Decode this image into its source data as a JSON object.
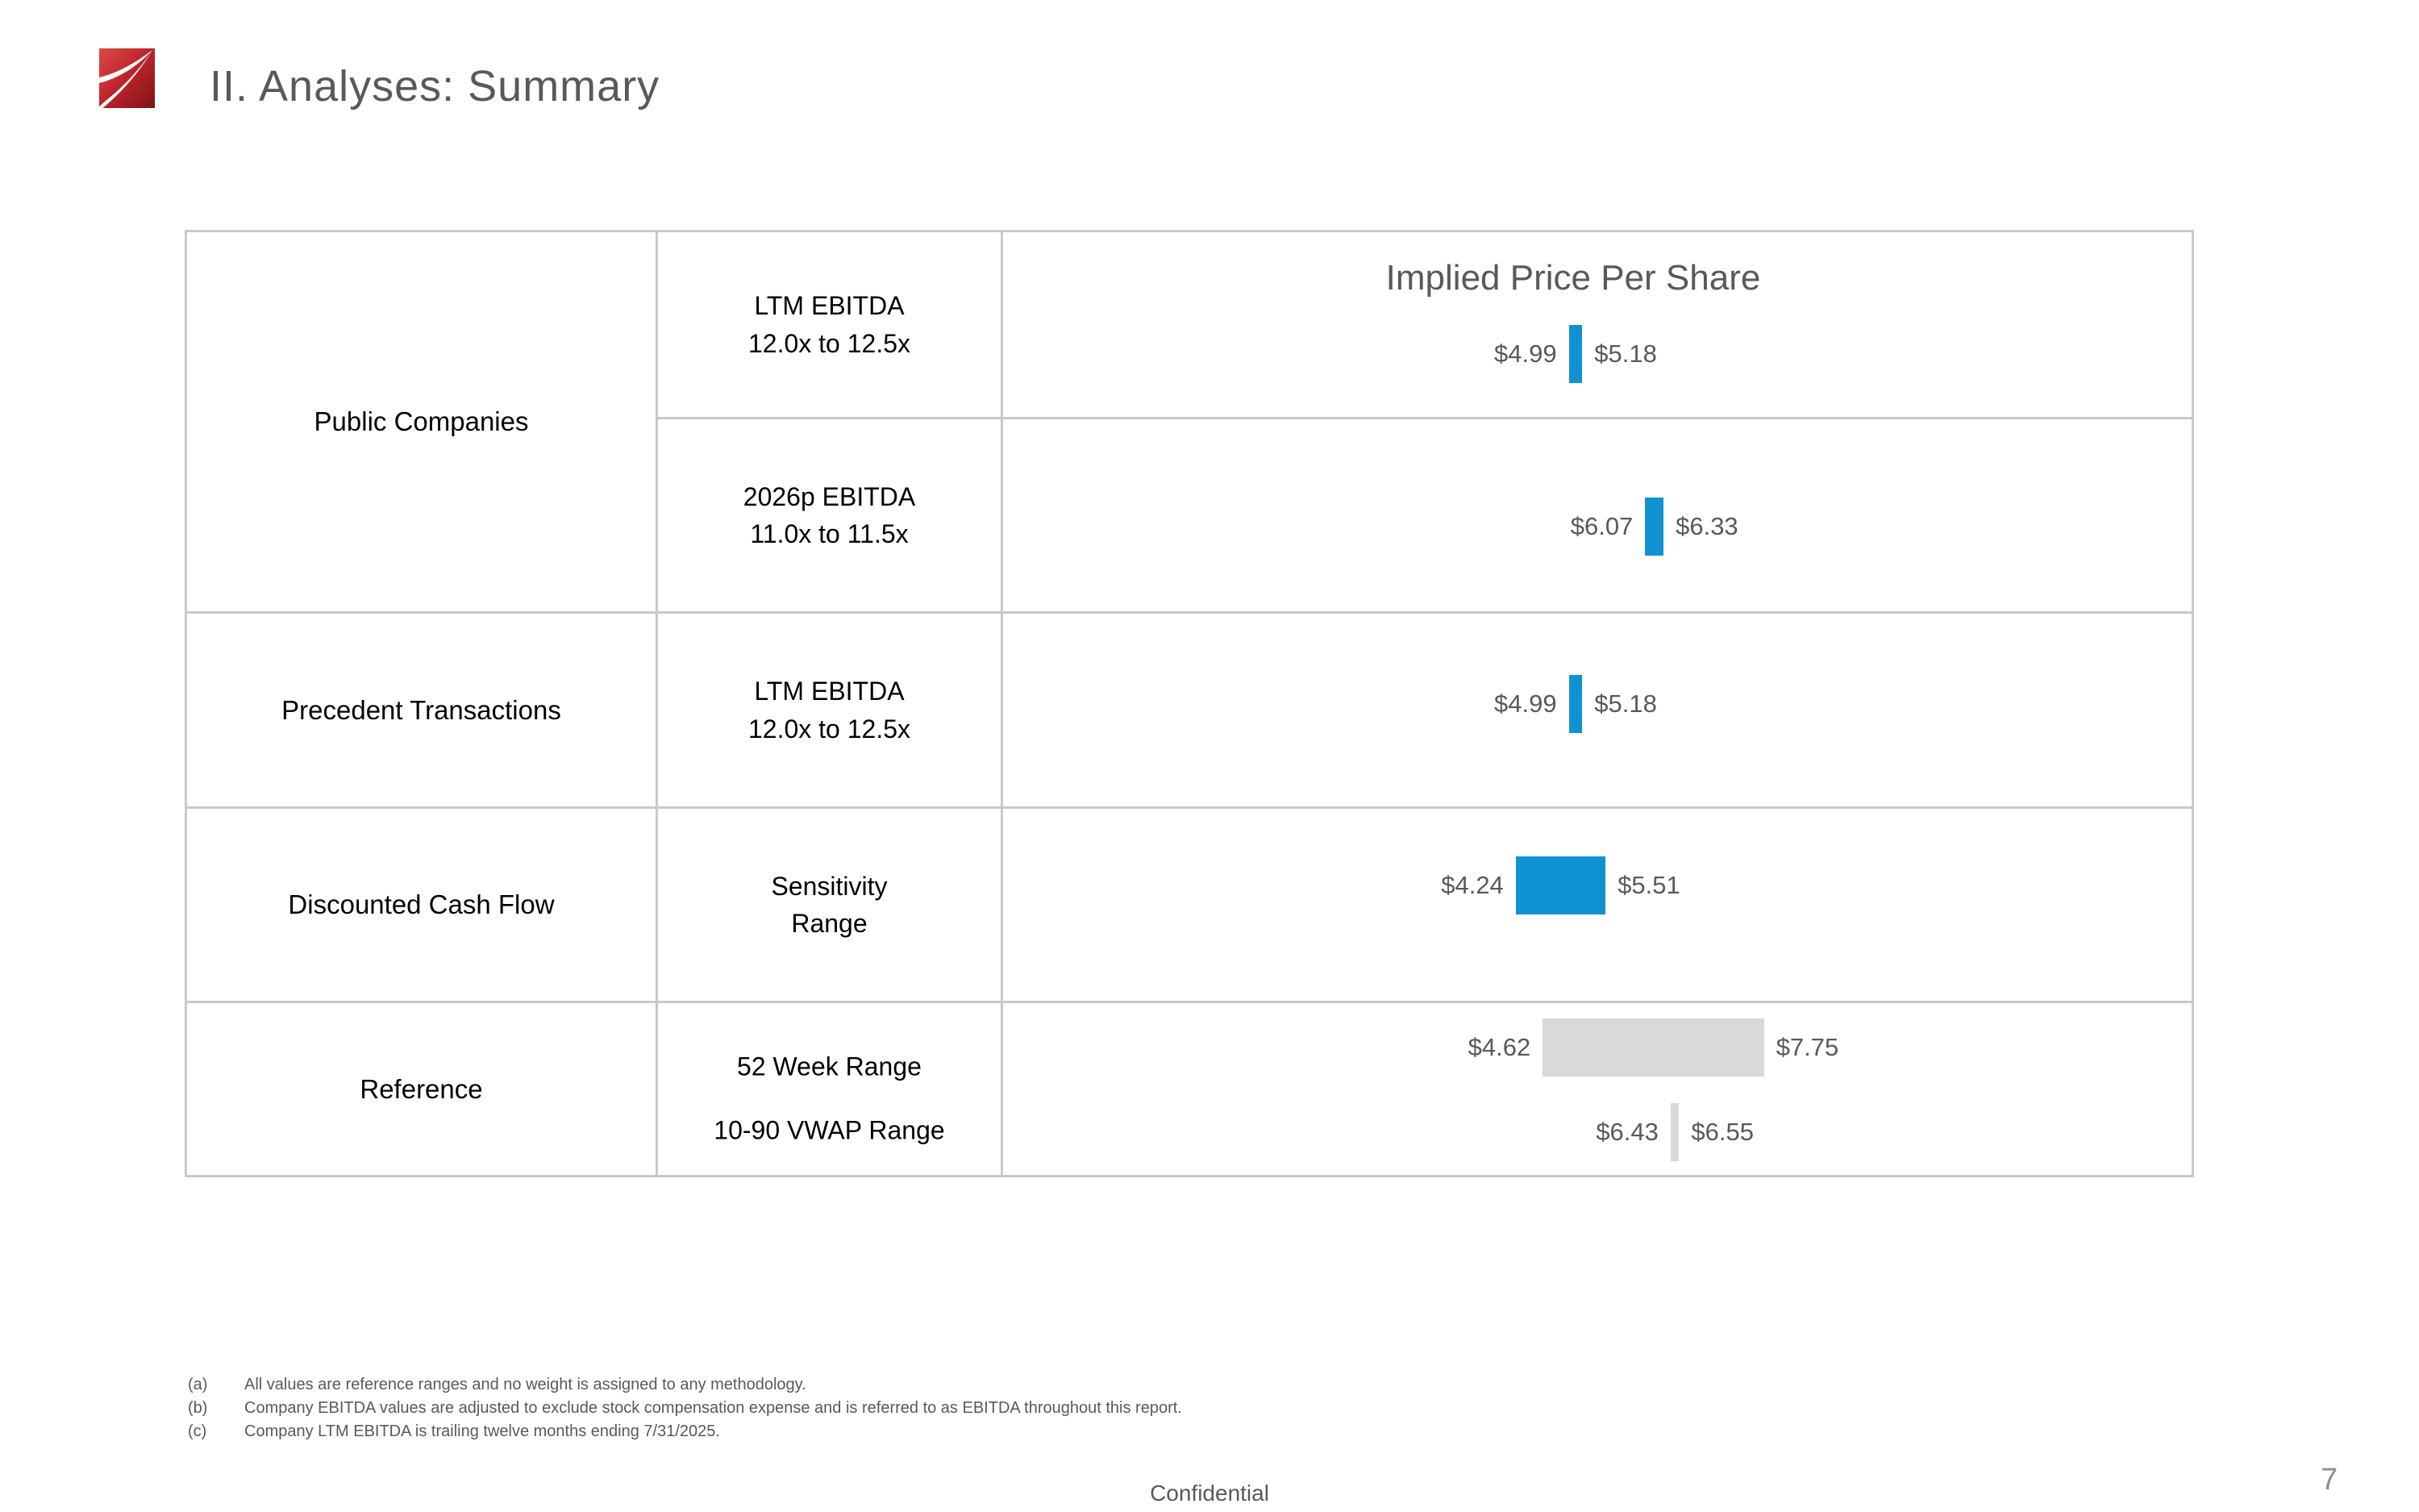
{
  "slide": {
    "title": "II. Analyses: Summary",
    "footer": {
      "confidential": "Confidential",
      "page_number": "7"
    }
  },
  "table": {
    "chart_header": "Implied Price Per Share",
    "row_groups": [
      {
        "methodology": "Public Companies",
        "entries": [
          {
            "metric_lines": [
              "LTM EBITDA",
              "12.0x to 12.5x"
            ],
            "low_label": "$4.99",
            "high_label": "$5.18"
          },
          {
            "metric_lines": [
              "2026p EBITDA",
              "11.0x to 11.5x"
            ],
            "low_label": "$6.07",
            "high_label": "$6.33"
          }
        ]
      },
      {
        "methodology": "Precedent Transactions",
        "entries": [
          {
            "metric_lines": [
              "LTM EBITDA",
              "12.0x to 12.5x"
            ],
            "low_label": "$4.99",
            "high_label": "$5.18"
          }
        ]
      },
      {
        "methodology": "Discounted Cash Flow",
        "entries": [
          {
            "metric_lines": [
              "Sensitivity",
              "Range"
            ],
            "low_label": "$4.24",
            "high_label": "$5.51"
          }
        ]
      },
      {
        "methodology": "Reference",
        "entries": [
          {
            "metric_lines": [
              "52 Week Range"
            ],
            "low_label": "$4.62",
            "high_label": "$7.75"
          },
          {
            "metric_lines": [
              "10-90 VWAP Range"
            ],
            "low_label": "$6.43",
            "high_label": "$6.55"
          }
        ]
      }
    ]
  },
  "footnotes": [
    {
      "marker": "(a)",
      "text": "All values are reference ranges and no weight is assigned to any methodology."
    },
    {
      "marker": "(b)",
      "text": "Company EBITDA values are adjusted to exclude stock compensation expense and is referred to as EBITDA throughout this report."
    },
    {
      "marker": "(c)",
      "text": "Company LTM EBITDA is trailing twelve months ending 7/31/2025."
    }
  ],
  "colors": {
    "accent_blue": "#1092D2",
    "reference_gray": "#D9D9D9",
    "text_gray": "#595959",
    "border_gray": "#C9C9C9",
    "logo_red": "#C1272D"
  },
  "chart_data": {
    "type": "bar",
    "orientation": "horizontal-range",
    "title": "Implied Price Per Share",
    "xlabel": "Implied price per share ($)",
    "ylabel": "",
    "xlim": [
      3.9,
      8.6
    ],
    "grid": false,
    "legend": false,
    "categories": [
      "Public Companies - LTM EBITDA 12.0x to 12.5x",
      "Public Companies - 2026p EBITDA 11.0x to 11.5x",
      "Precedent Transactions - LTM EBITDA 12.0x to 12.5x",
      "Discounted Cash Flow - Sensitivity Range",
      "Reference - 52 Week Range",
      "Reference - 10-90 VWAP Range"
    ],
    "series": [
      {
        "name": "Implied Price Per Share ($)",
        "ranges": [
          [
            4.99,
            5.18
          ],
          [
            6.07,
            6.33
          ],
          [
            4.99,
            5.18
          ],
          [
            4.24,
            5.51
          ],
          [
            4.62,
            7.75
          ],
          [
            6.43,
            6.55
          ]
        ],
        "colors": [
          "#1092D2",
          "#1092D2",
          "#1092D2",
          "#1092D2",
          "#D9D9D9",
          "#D9D9D9"
        ]
      }
    ]
  }
}
